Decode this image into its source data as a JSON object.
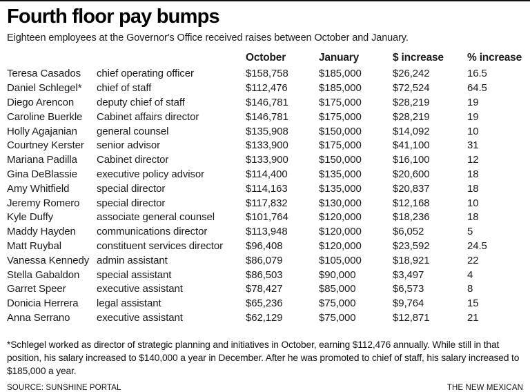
{
  "page": {
    "title": "Fourth floor pay bumps",
    "subtitle": "Eighteen employees at the Governor's Office received raises between October and January.",
    "footnote": "*Schlegel worked as director of strategic planning and initiatives in October, earning $112,476 annually. While still in that position, his salary increased to $140,000 a year in December. After he was promoted to chief of staff, his salary increased to $185,000 a year.",
    "source": "SOURCE: SUNSHINE PORTAL",
    "credit": "THE NEW MEXICAN"
  },
  "chart_data": {
    "type": "table",
    "title": "Fourth floor pay bumps",
    "columns": [
      "",
      "",
      "October",
      "January",
      "$ increase",
      "% increase"
    ],
    "rows": [
      {
        "name": "Teresa Casados",
        "position": "chief operating officer",
        "october": "$158,758",
        "january": "$185,000",
        "dollar_increase": "$26,242",
        "percent_increase": "16.5"
      },
      {
        "name": "Daniel Schlegel*",
        "position": "chief of staff",
        "october": "$112,476",
        "january": "$185,000",
        "dollar_increase": "$72,524",
        "percent_increase": "64.5"
      },
      {
        "name": "Diego Arencon",
        "position": "deputy chief of staff",
        "october": "$146,781",
        "january": "$175,000",
        "dollar_increase": "$28,219",
        "percent_increase": "19"
      },
      {
        "name": "Caroline Buerkle",
        "position": "Cabinet affairs director",
        "october": "$146,781",
        "january": "$175,000",
        "dollar_increase": "$28,219",
        "percent_increase": "19"
      },
      {
        "name": "Holly Agajanian",
        "position": "general counsel",
        "october": "$135,908",
        "january": "$150,000",
        "dollar_increase": "$14,092",
        "percent_increase": "10"
      },
      {
        "name": "Courtney Kerster",
        "position": "senior advisor",
        "october": "$133,900",
        "january": "$175,000",
        "dollar_increase": "$41,100",
        "percent_increase": "31"
      },
      {
        "name": "Mariana Padilla",
        "position": "Cabinet director",
        "october": "$133,900",
        "january": "$150,000",
        "dollar_increase": "$16,100",
        "percent_increase": "12"
      },
      {
        "name": "Gina DeBlassie",
        "position": "executive policy advisor",
        "october": "$114,400",
        "january": "$135,000",
        "dollar_increase": "$20,600",
        "percent_increase": "18"
      },
      {
        "name": "Amy Whitfield",
        "position": "special director",
        "october": "$114,163",
        "january": "$135,000",
        "dollar_increase": "$20,837",
        "percent_increase": "18"
      },
      {
        "name": "Jeremy Romero",
        "position": "special director",
        "october": "$117,832",
        "january": "$130,000",
        "dollar_increase": "$12,168",
        "percent_increase": "10"
      },
      {
        "name": "Kyle Duffy",
        "position": "associate general counsel",
        "october": "$101,764",
        "january": "$120,000",
        "dollar_increase": "$18,236",
        "percent_increase": "18"
      },
      {
        "name": "Maddy Hayden",
        "position": "communications director",
        "october": "$113,948",
        "january": "$120,000",
        "dollar_increase": "$6,052",
        "percent_increase": "5"
      },
      {
        "name": "Matt Ruybal",
        "position": "constituent services director",
        "october": "$96,408",
        "january": "$120,000",
        "dollar_increase": "$23,592",
        "percent_increase": "24.5"
      },
      {
        "name": "Vanessa Kennedy",
        "position": "admin assistant",
        "october": "$86,079",
        "january": "$105,000",
        "dollar_increase": "$18,921",
        "percent_increase": "22"
      },
      {
        "name": "Stella Gabaldon",
        "position": "special assistant",
        "october": "$86,503",
        "january": "$90,000",
        "dollar_increase": "$3,497",
        "percent_increase": "4"
      },
      {
        "name": "Garret Speer",
        "position": "executive assistant",
        "october": "$78,427",
        "january": "$85,000",
        "dollar_increase": "$6,573",
        "percent_increase": "8"
      },
      {
        "name": "Donicia Herrera",
        "position": "legal assistant",
        "october": "$65,236",
        "january": "$75,000",
        "dollar_increase": "$9,764",
        "percent_increase": "15"
      },
      {
        "name": "Anna Serrano",
        "position": "executive assistant",
        "october": "$62,129",
        "january": "$75,000",
        "dollar_increase": "$12,871",
        "percent_increase": "21"
      }
    ]
  }
}
